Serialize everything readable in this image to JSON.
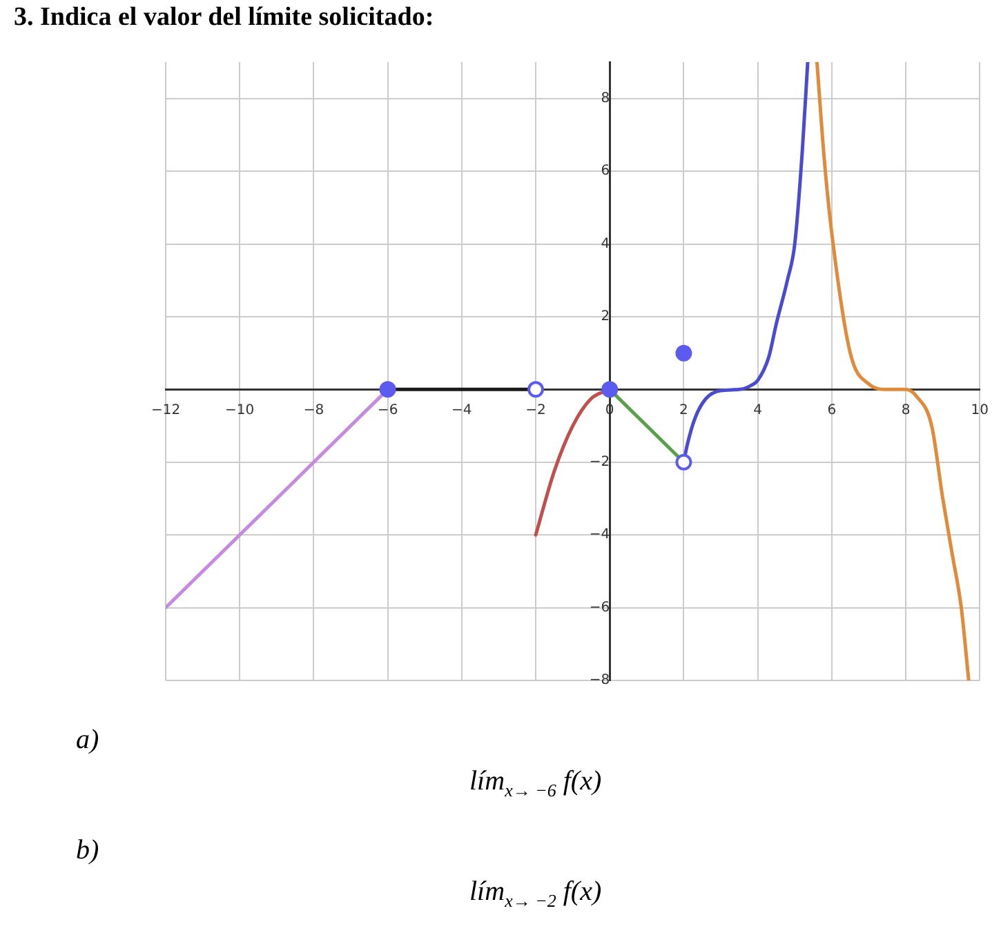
{
  "chart_data": {
    "type": "line",
    "title": "3. Indica el valor del límite solicitado:",
    "xlim": [
      -12,
      10
    ],
    "ylim": [
      -8,
      9
    ],
    "xticks": [
      -12,
      -10,
      -8,
      -6,
      -4,
      -2,
      0,
      2,
      4,
      6,
      8,
      10
    ],
    "yticks": [
      -8,
      -6,
      -4,
      -2,
      2,
      4,
      6,
      8
    ],
    "grid": true,
    "legend": false,
    "marker": "none",
    "line_style": "solid",
    "series": [
      {
        "color": "#c58be0",
        "x": [
          -12,
          -6
        ],
        "values": [
          -6,
          0
        ]
      },
      {
        "color": "#1a1a1a",
        "x": [
          -6,
          -2
        ],
        "values": [
          0,
          0
        ]
      },
      {
        "color": "#c0504d",
        "x": [
          -2,
          -1.5,
          -1,
          -0.5,
          0
        ],
        "values": [
          -4,
          -2.25,
          -1,
          -0.25,
          0
        ]
      },
      {
        "color": "#5aa04a",
        "x": [
          0,
          2
        ],
        "values": [
          0,
          -2
        ]
      },
      {
        "color": "#4b4bd0",
        "x": [
          2,
          2.1,
          2.3,
          2.6,
          3,
          3.5,
          3.8,
          4,
          4.3,
          4.5,
          4.8,
          5,
          5.2,
          5.35
        ],
        "values": [
          -2,
          -1.5,
          -0.8,
          -0.25,
          -0.03,
          0,
          0.1,
          0.25,
          0.9,
          1.8,
          3,
          4,
          6.5,
          9
        ]
      },
      {
        "color": "#e08a3c",
        "x": [
          5.6,
          5.8,
          6,
          6.5,
          7,
          7.5,
          8,
          8.3,
          8.7,
          9,
          9.25,
          9.5,
          9.7
        ],
        "values": [
          9,
          6.3,
          4.3,
          1,
          0.15,
          0,
          0,
          -0.2,
          -1,
          -3,
          -4.5,
          -6,
          -8
        ]
      },
      {
        "type": "scatter",
        "marker": "circle",
        "color": "#5b5bf0",
        "x": [
          -6,
          0,
          2
        ],
        "values": [
          0,
          0,
          1
        ]
      },
      {
        "type": "scatter",
        "marker": "circle",
        "color": "#5b5bf0",
        "colors": [
          "#ffffff",
          "#ffffff"
        ],
        "x": [
          -2,
          2
        ],
        "values": [
          0,
          -2
        ]
      }
    ],
    "annotations": [
      "a)",
      "lím$_{x→ −6}$ f(x)",
      "b)",
      "lím$_{x→ −2}$ f(x)"
    ]
  }
}
